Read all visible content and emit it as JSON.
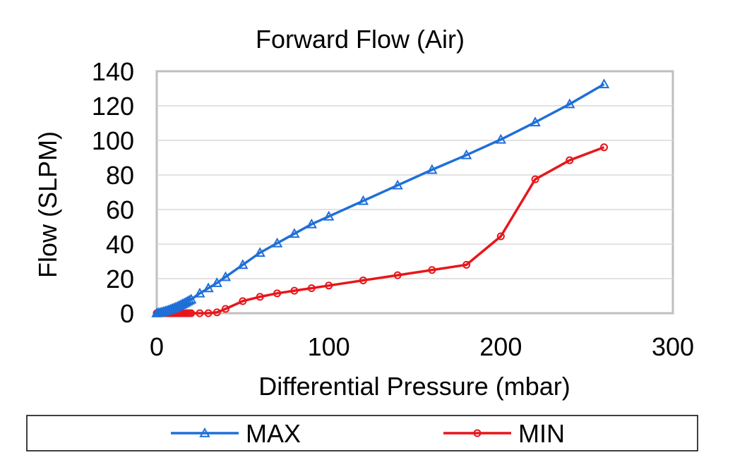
{
  "chart_data": {
    "type": "line",
    "title": "Forward Flow (Air)",
    "xlabel": "Differential Pressure (mbar)",
    "ylabel": "Flow (SLPM)",
    "xlim": [
      0,
      300
    ],
    "ylim": [
      0,
      140
    ],
    "xticks": [
      0,
      100,
      200,
      300
    ],
    "yticks": [
      0,
      20,
      40,
      60,
      80,
      100,
      120,
      140
    ],
    "grid": "horizontal",
    "legend_position": "bottom",
    "series": [
      {
        "name": "MAX",
        "color": "#1f6fd8",
        "marker": "triangle",
        "x": [
          0,
          1,
          2,
          3,
          4,
          5,
          6,
          7,
          8,
          9,
          10,
          11,
          12,
          13,
          14,
          15,
          16,
          17,
          18,
          19,
          20,
          25,
          30,
          35,
          40,
          50,
          60,
          70,
          80,
          90,
          100,
          120,
          140,
          160,
          180,
          200,
          220,
          240,
          260
        ],
        "y": [
          0,
          0.2,
          0.4,
          0.6,
          0.9,
          1.2,
          1.5,
          1.8,
          2.2,
          2.6,
          3.0,
          3.4,
          3.8,
          4.3,
          4.8,
          5.3,
          5.8,
          6.3,
          6.9,
          7.4,
          8,
          11.5,
          14.5,
          17.5,
          21,
          28,
          35,
          40.5,
          46,
          51.5,
          56,
          65,
          74,
          83,
          91.5,
          100.5,
          110.5,
          121,
          132.5
        ]
      },
      {
        "name": "MIN",
        "color": "#e8161b",
        "marker": "circle",
        "x": [
          0,
          1,
          2,
          3,
          4,
          5,
          6,
          7,
          8,
          9,
          10,
          11,
          12,
          13,
          14,
          15,
          16,
          17,
          18,
          19,
          20,
          25,
          30,
          35,
          40,
          50,
          60,
          70,
          80,
          90,
          100,
          120,
          140,
          160,
          180,
          200,
          220,
          240,
          260
        ],
        "y": [
          0,
          0,
          0,
          0,
          0,
          0,
          0,
          0,
          0,
          0,
          0,
          0,
          0,
          0,
          0,
          0,
          0,
          0,
          0,
          0,
          0,
          0,
          0,
          0.5,
          2.5,
          7,
          9.5,
          11.5,
          13,
          14.5,
          16,
          19,
          22,
          25,
          28,
          44.5,
          77.5,
          88.5,
          96
        ]
      }
    ]
  }
}
